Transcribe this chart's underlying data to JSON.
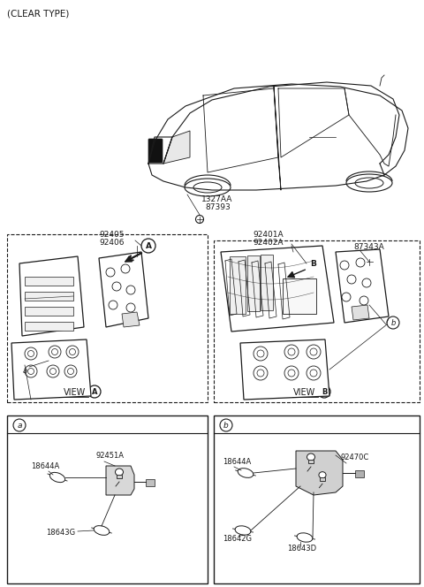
{
  "bg_color": "#ffffff",
  "line_color": "#1a1a1a",
  "text_color": "#1a1a1a",
  "title": "(CLEAR TYPE)",
  "label_1327AA": "1327AA",
  "label_87393": "87393",
  "label_92405": "92405",
  "label_92406": "92406",
  "label_92401A": "92401A",
  "label_92402A": "92402A",
  "label_87343A": "87343A",
  "label_92451A": "92451A",
  "label_18644A": "18644A",
  "label_18643G": "18643G",
  "label_92470C": "92470C",
  "label_18642G": "18642G",
  "label_18643D": "18643D",
  "label_VIEW": "VIEW"
}
